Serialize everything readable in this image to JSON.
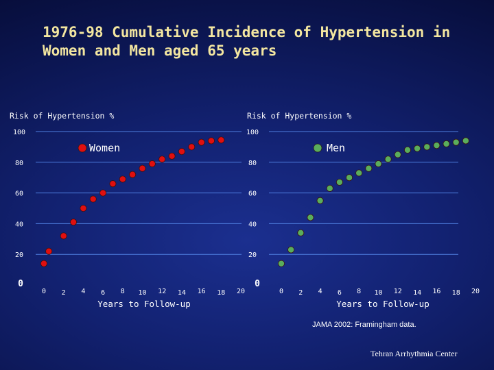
{
  "slide_title": "1976-98 Cumulative Incidence of Hypertension in Women and Men aged 65 years",
  "source_note": "JAMA 2002: Framingham data.",
  "credit": "Tehran Arrhythmia Center",
  "colors": {
    "women": "#e00f0f",
    "men": "#5aad5c",
    "grid": "#4f7fe0",
    "title": "#f3e6a0"
  },
  "chart_data": [
    {
      "type": "scatter",
      "series_name": "Women",
      "ylabel": "Risk of Hypertension %",
      "xlabel": "Years to Follow-up",
      "ylim": [
        0,
        100
      ],
      "yticks": [
        "100",
        "80",
        "60",
        "40",
        "20",
        "0"
      ],
      "xlim": [
        0,
        20
      ],
      "xticks": [
        "0",
        "2",
        "4",
        "6",
        "8",
        "10",
        "12",
        "14",
        "16",
        "18",
        "20"
      ],
      "grid": true,
      "x": [
        0,
        0.5,
        2,
        3,
        4,
        5,
        6,
        7,
        8,
        9,
        10,
        11,
        12,
        13,
        14,
        15,
        16,
        17,
        18
      ],
      "y": [
        14,
        22,
        32,
        41,
        50,
        56,
        60,
        66,
        69,
        72,
        76,
        79,
        82,
        84,
        87,
        90,
        93,
        94,
        94.5
      ]
    },
    {
      "type": "scatter",
      "series_name": "Men",
      "ylabel": "Risk of Hypertension %",
      "xlabel": "Years to Follow-up",
      "ylim": [
        0,
        100
      ],
      "yticks": [
        "100",
        "80",
        "60",
        "40",
        "20",
        "0"
      ],
      "xlim": [
        0,
        20
      ],
      "xticks": [
        "0",
        "2",
        "4",
        "6",
        "8",
        "10",
        "12",
        "14",
        "16",
        "18",
        "20"
      ],
      "grid": true,
      "x": [
        0,
        1,
        2,
        3,
        4,
        5,
        6,
        7,
        8,
        9,
        10,
        11,
        12,
        13,
        14,
        15,
        16,
        17,
        18,
        19
      ],
      "y": [
        14,
        23,
        34,
        44,
        55,
        63,
        67,
        70,
        73,
        76,
        79,
        82,
        85,
        88,
        89,
        90,
        91,
        92,
        93,
        94
      ]
    }
  ]
}
